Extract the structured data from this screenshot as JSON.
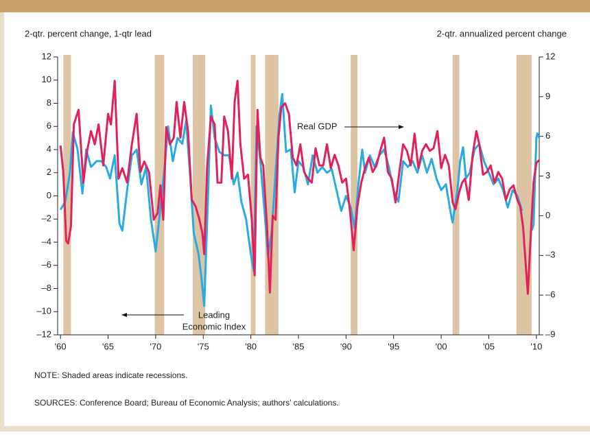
{
  "chart_data": {
    "type": "line",
    "y_label": "2-qtr. percent change, 1-qtr lead",
    "y2_label": "2-qtr. annualized percent change",
    "note": "NOTE: Shaded areas indicate recessions.",
    "source": "SOURCES: Conference Board; Bureau of Economic Analysis; authors’ calculations.",
    "annotations": [
      {
        "lines": [
          "Real GDP"
        ]
      },
      {
        "lines": [
          "Leading",
          "Economic Index"
        ]
      }
    ],
    "xlim": [
      1959.7,
      2010.3
    ],
    "xticks": [
      {
        "value": 1960,
        "label": "'60"
      },
      {
        "value": 1965,
        "label": "'65"
      },
      {
        "value": 1970,
        "label": "'70"
      },
      {
        "value": 1975,
        "label": "'75"
      },
      {
        "value": 1980,
        "label": "'80"
      },
      {
        "value": 1985,
        "label": "'85"
      },
      {
        "value": 1990,
        "label": "'90"
      },
      {
        "value": 1995,
        "label": "'95"
      },
      {
        "value": 2000,
        "label": "'00"
      },
      {
        "value": 2005,
        "label": "'05"
      },
      {
        "value": 2010,
        "label": "'10"
      }
    ],
    "ylim": [
      -12,
      12
    ],
    "yticks": [
      {
        "value": -12,
        "label": "–12"
      },
      {
        "value": -10,
        "label": "–10"
      },
      {
        "value": -8,
        "label": "–8"
      },
      {
        "value": -6,
        "label": "–6"
      },
      {
        "value": -4,
        "label": "–4"
      },
      {
        "value": -2,
        "label": "–2"
      },
      0,
      2,
      4,
      6,
      8,
      10,
      12
    ],
    "y2lim": [
      -9,
      12
    ],
    "y2ticks": [
      {
        "value": -9,
        "label": "–9"
      },
      {
        "value": -6,
        "label": "–6"
      },
      {
        "value": -3,
        "label": "–3"
      },
      0,
      3,
      6,
      9,
      12
    ],
    "recession_color": "#dcc4a4",
    "recessions": [
      [
        1960.3,
        1961.1
      ],
      [
        1969.9,
        1970.9
      ],
      [
        1973.9,
        1975.2
      ],
      [
        1980.0,
        1980.5
      ],
      [
        1981.5,
        1982.9
      ],
      [
        1990.5,
        1991.2
      ],
      [
        2001.2,
        2001.9
      ],
      [
        2007.9,
        2009.5
      ]
    ],
    "series": [
      {
        "name": "Leading Economic Index",
        "color": "#29aae2",
        "axis": "y",
        "x": [
          1960,
          1960.5,
          1961,
          1961.3,
          1961.8,
          1962.3,
          1962.7,
          1963.2,
          1963.8,
          1964.3,
          1964.8,
          1965.2,
          1965.7,
          1966.2,
          1966.5,
          1967,
          1967.5,
          1968,
          1968.5,
          1969,
          1969.5,
          1970,
          1970.5,
          1971,
          1971.3,
          1971.8,
          1972.3,
          1972.8,
          1973.2,
          1973.6,
          1974,
          1974.5,
          1974.8,
          1975.1,
          1975.5,
          1975.8,
          1976.2,
          1976.7,
          1977.2,
          1977.7,
          1978.2,
          1978.6,
          1979,
          1979.5,
          1980,
          1980.3,
          1980.6,
          1981,
          1981.4,
          1981.8,
          1982.2,
          1982.6,
          1983,
          1983.3,
          1983.7,
          1984.2,
          1984.6,
          1985,
          1985.5,
          1986,
          1986.5,
          1987,
          1987.5,
          1988,
          1988.5,
          1989,
          1989.5,
          1990,
          1990.5,
          1990.9,
          1991.3,
          1991.7,
          1992,
          1992.5,
          1993,
          1993.5,
          1994,
          1994.5,
          1995,
          1995.5,
          1996,
          1996.5,
          1997,
          1997.5,
          1998,
          1998.5,
          1999,
          1999.5,
          2000,
          2000.5,
          2001,
          2001.2,
          2001.7,
          2002,
          2002.3,
          2002.6,
          2003,
          2003.5,
          2004,
          2004.5,
          2005,
          2005.5,
          2006,
          2006.5,
          2007,
          2007.5,
          2008,
          2008.5,
          2009,
          2009.5,
          2009.7,
          2010,
          2010.1,
          2010.3
        ],
        "values": [
          -1.2,
          -0.5,
          2,
          5.5,
          4,
          0.2,
          4,
          2.5,
          3,
          3,
          2.5,
          1.5,
          3.5,
          -2.4,
          -3,
          0.5,
          3.5,
          4,
          1,
          2.5,
          -2,
          -4.8,
          -1,
          3,
          6,
          3,
          5,
          4.5,
          6.5,
          2,
          -3.2,
          -5,
          -7,
          -9.5,
          0,
          7.8,
          5,
          3.8,
          3.5,
          3.5,
          1,
          2,
          -0.5,
          -2,
          -5,
          -6.5,
          6,
          3,
          -1,
          -5.2,
          -3,
          2,
          7,
          8.8,
          3.8,
          4,
          0.3,
          3,
          2.5,
          1,
          3.5,
          2,
          2.5,
          2,
          2.3,
          0.5,
          -1.3,
          0,
          -1,
          -2.8,
          1,
          4,
          2,
          3.5,
          2.5,
          3.5,
          4,
          2.5,
          0.5,
          -0.5,
          3,
          2.5,
          3,
          2,
          3.5,
          2,
          3.2,
          1.5,
          0.5,
          1,
          -1.5,
          -2.3,
          0.5,
          3,
          4.2,
          1.5,
          2,
          4,
          4.5,
          3,
          2,
          1,
          1.5,
          0.5,
          -1,
          0.5,
          0,
          -1.3,
          null,
          -3,
          -2.5,
          5,
          5.4,
          5
        ]
      },
      {
        "name": "Real GDP",
        "color": "#e2215a",
        "axis": "y2",
        "x": [
          1960,
          1960.3,
          1960.6,
          1960.8,
          1961.1,
          1961.4,
          1961.9,
          1962.4,
          1962.8,
          1963.2,
          1963.6,
          1964,
          1964.5,
          1965,
          1965.3,
          1965.7,
          1966.1,
          1966.5,
          1967,
          1967.5,
          1968,
          1968.4,
          1968.8,
          1969.3,
          1969.8,
          1970.2,
          1970.5,
          1970.8,
          1971.1,
          1971.5,
          1971.9,
          1972.2,
          1972.6,
          1973,
          1973.4,
          1973.8,
          1974.2,
          1974.6,
          1974.9,
          1975.1,
          1975.4,
          1975.8,
          1976.2,
          1976.5,
          1976.9,
          1977.2,
          1977.6,
          1978,
          1978.3,
          1978.6,
          1978.9,
          1979.3,
          1979.7,
          1980.1,
          1980.4,
          1980.7,
          1981,
          1981.3,
          1981.7,
          1982,
          1982.3,
          1982.6,
          1982.9,
          1983.2,
          1983.6,
          1984,
          1984.4,
          1984.8,
          1985.2,
          1985.6,
          1986,
          1986.4,
          1986.8,
          1987.2,
          1987.6,
          1988,
          1988.4,
          1988.8,
          1989.2,
          1989.6,
          1990,
          1990.4,
          1990.8,
          1991.2,
          1991.6,
          1992,
          1992.4,
          1992.8,
          1993.2,
          1993.6,
          1994,
          1994.4,
          1994.8,
          1995.2,
          1995.6,
          1996,
          1996.4,
          1996.8,
          1997.2,
          1997.6,
          1998,
          1998.4,
          1998.8,
          1999.2,
          1999.6,
          2000,
          2000.4,
          2000.8,
          2001.2,
          2001.5,
          2001.9,
          2002.2,
          2002.5,
          2002.9,
          2003.3,
          2003.7,
          2004,
          2004.4,
          2004.8,
          2005.2,
          2005.6,
          2006,
          2006.4,
          2006.8,
          2007.2,
          2007.6,
          2008,
          2008.3,
          2008.6,
          2008.9,
          2009.1,
          2009.4,
          2009.7,
          2010,
          2010.3
        ],
        "values": [
          5.3,
          3.3,
          -1.9,
          -2.1,
          -0.8,
          6.9,
          8,
          2.5,
          4.9,
          6.4,
          5.4,
          6.9,
          3.8,
          7.7,
          6.9,
          10.2,
          2.8,
          3.6,
          2.5,
          5.4,
          7.7,
          3.3,
          4.1,
          3.3,
          -0.3,
          0.2,
          2.3,
          -0.3,
          6.7,
          5.4,
          5.9,
          8.6,
          5.9,
          8.6,
          6.4,
          1.2,
          0.7,
          -0.3,
          -1.3,
          -2.9,
          3.6,
          7.5,
          6.9,
          2.5,
          2.5,
          7.5,
          6.4,
          2.8,
          8.6,
          10.2,
          5.4,
          2.8,
          3.1,
          -0.3,
          -4.5,
          8,
          4.4,
          3.8,
          -0.8,
          -5.8,
          0,
          -0.3,
          5.9,
          8.2,
          8.5,
          7.7,
          4.4,
          3.8,
          5.4,
          3.3,
          2.8,
          2.5,
          5.1,
          3.8,
          3.8,
          5.4,
          3.6,
          4.6,
          3.8,
          2.5,
          2.8,
          0.5,
          -2.6,
          0.7,
          2.5,
          3.6,
          4.4,
          3.3,
          3.8,
          4.9,
          5.9,
          3.3,
          2.8,
          1,
          3.3,
          5.4,
          4.9,
          3.8,
          6.2,
          3.6,
          4.9,
          5.4,
          4.9,
          5.1,
          6.4,
          3.6,
          4.6,
          3.8,
          1,
          0.5,
          1.8,
          2.5,
          2.8,
          1.2,
          4.6,
          6.4,
          5.4,
          3.1,
          3.3,
          3.8,
          2.5,
          3.3,
          2.8,
          1.2,
          2,
          2.3,
          1.2,
          0.7,
          -0.8,
          -3.9,
          -5.9,
          -1.6,
          2.5,
          4,
          4.2
        ]
      }
    ]
  }
}
